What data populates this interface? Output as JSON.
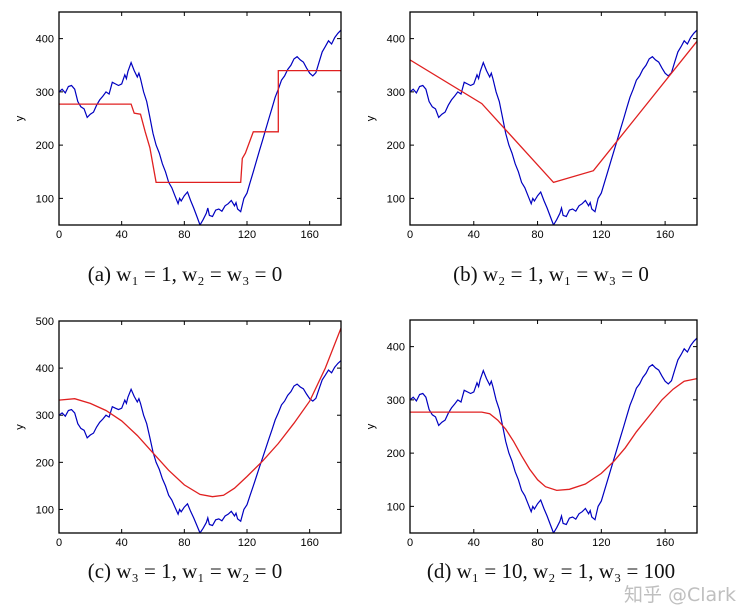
{
  "colors": {
    "observed": "#0000c0",
    "fit": "#e02020"
  },
  "watermark": "知乎 @Clark",
  "chart_data": [
    {
      "type": "line",
      "caption": "(a) w₁ = 1, w₂ = w₃ = 0",
      "ylabel": "y",
      "xlim": [
        0,
        180
      ],
      "ylim": [
        50,
        450
      ],
      "xticks": [
        0,
        40,
        80,
        120,
        160
      ],
      "yticks": [
        100,
        200,
        300,
        400
      ],
      "fit": [
        [
          0,
          277
        ],
        [
          46,
          277
        ],
        [
          48,
          260
        ],
        [
          52,
          258
        ],
        [
          55,
          225
        ],
        [
          58,
          195
        ],
        [
          62,
          130
        ],
        [
          116,
          130
        ],
        [
          117,
          175
        ],
        [
          119,
          185
        ],
        [
          124,
          225
        ],
        [
          140,
          225
        ],
        [
          140,
          340
        ],
        [
          180,
          340
        ]
      ]
    },
    {
      "type": "line",
      "caption": "(b) w₂ = 1, w₁ = w₃ = 0",
      "ylabel": "y",
      "xlim": [
        0,
        180
      ],
      "ylim": [
        50,
        450
      ],
      "xticks": [
        0,
        40,
        80,
        120,
        160
      ],
      "yticks": [
        100,
        200,
        300,
        400
      ],
      "fit": [
        [
          0,
          360
        ],
        [
          45,
          278
        ],
        [
          90,
          130
        ],
        [
          115,
          152
        ],
        [
          180,
          395
        ]
      ]
    },
    {
      "type": "line",
      "caption": "(c) w₃ = 1, w₁ = w₂ = 0",
      "ylabel": "y",
      "xlim": [
        0,
        180
      ],
      "ylim": [
        50,
        500
      ],
      "xticks": [
        0,
        40,
        80,
        120,
        160
      ],
      "yticks": [
        100,
        200,
        300,
        400,
        500
      ],
      "fit": [
        [
          0,
          332
        ],
        [
          10,
          335
        ],
        [
          20,
          325
        ],
        [
          30,
          310
        ],
        [
          40,
          288
        ],
        [
          50,
          257
        ],
        [
          60,
          220
        ],
        [
          70,
          183
        ],
        [
          80,
          152
        ],
        [
          90,
          132
        ],
        [
          98,
          127
        ],
        [
          105,
          130
        ],
        [
          112,
          145
        ],
        [
          120,
          170
        ],
        [
          130,
          203
        ],
        [
          140,
          240
        ],
        [
          150,
          283
        ],
        [
          160,
          330
        ],
        [
          170,
          400
        ],
        [
          180,
          485
        ]
      ]
    },
    {
      "type": "line",
      "caption": "(d) w₁ = 10, w₂ = 1, w₃ = 100",
      "ylabel": "y",
      "xlim": [
        0,
        180
      ],
      "ylim": [
        50,
        450
      ],
      "xticks": [
        0,
        40,
        80,
        120,
        160
      ],
      "yticks": [
        100,
        200,
        300,
        400
      ],
      "fit": [
        [
          0,
          277
        ],
        [
          45,
          277
        ],
        [
          50,
          274
        ],
        [
          55,
          262
        ],
        [
          60,
          245
        ],
        [
          65,
          222
        ],
        [
          70,
          195
        ],
        [
          75,
          170
        ],
        [
          80,
          150
        ],
        [
          85,
          137
        ],
        [
          92,
          130
        ],
        [
          100,
          132
        ],
        [
          110,
          142
        ],
        [
          120,
          162
        ],
        [
          128,
          185
        ],
        [
          135,
          210
        ],
        [
          142,
          240
        ],
        [
          150,
          270
        ],
        [
          158,
          300
        ],
        [
          165,
          320
        ],
        [
          172,
          335
        ],
        [
          180,
          340
        ]
      ]
    }
  ],
  "observed": [
    [
      0,
      300
    ],
    [
      2,
      305
    ],
    [
      4,
      298
    ],
    [
      6,
      310
    ],
    [
      8,
      312
    ],
    [
      10,
      305
    ],
    [
      12,
      282
    ],
    [
      14,
      272
    ],
    [
      16,
      268
    ],
    [
      18,
      252
    ],
    [
      20,
      258
    ],
    [
      22,
      262
    ],
    [
      24,
      275
    ],
    [
      26,
      285
    ],
    [
      28,
      292
    ],
    [
      30,
      300
    ],
    [
      32,
      296
    ],
    [
      34,
      318
    ],
    [
      36,
      315
    ],
    [
      38,
      312
    ],
    [
      40,
      315
    ],
    [
      42,
      332
    ],
    [
      43,
      325
    ],
    [
      44,
      338
    ],
    [
      46,
      355
    ],
    [
      48,
      340
    ],
    [
      50,
      328
    ],
    [
      51,
      335
    ],
    [
      52,
      325
    ],
    [
      54,
      300
    ],
    [
      56,
      282
    ],
    [
      58,
      252
    ],
    [
      60,
      222
    ],
    [
      62,
      200
    ],
    [
      64,
      185
    ],
    [
      66,
      165
    ],
    [
      68,
      150
    ],
    [
      70,
      130
    ],
    [
      72,
      120
    ],
    [
      74,
      105
    ],
    [
      76,
      90
    ],
    [
      77,
      100
    ],
    [
      78,
      95
    ],
    [
      80,
      105
    ],
    [
      82,
      112
    ],
    [
      84,
      96
    ],
    [
      86,
      82
    ],
    [
      88,
      66
    ],
    [
      90,
      50
    ],
    [
      92,
      60
    ],
    [
      94,
      72
    ],
    [
      95,
      82
    ],
    [
      96,
      68
    ],
    [
      98,
      66
    ],
    [
      100,
      78
    ],
    [
      102,
      80
    ],
    [
      104,
      76
    ],
    [
      106,
      86
    ],
    [
      108,
      90
    ],
    [
      110,
      96
    ],
    [
      112,
      86
    ],
    [
      113,
      92
    ],
    [
      114,
      80
    ],
    [
      116,
      75
    ],
    [
      118,
      100
    ],
    [
      120,
      110
    ],
    [
      122,
      130
    ],
    [
      124,
      150
    ],
    [
      126,
      170
    ],
    [
      128,
      190
    ],
    [
      130,
      210
    ],
    [
      132,
      230
    ],
    [
      134,
      250
    ],
    [
      136,
      270
    ],
    [
      138,
      290
    ],
    [
      140,
      305
    ],
    [
      142,
      322
    ],
    [
      144,
      330
    ],
    [
      146,
      342
    ],
    [
      148,
      350
    ],
    [
      150,
      362
    ],
    [
      152,
      366
    ],
    [
      154,
      360
    ],
    [
      156,
      356
    ],
    [
      158,
      345
    ],
    [
      160,
      335
    ],
    [
      162,
      330
    ],
    [
      164,
      336
    ],
    [
      166,
      356
    ],
    [
      168,
      375
    ],
    [
      170,
      385
    ],
    [
      172,
      396
    ],
    [
      174,
      390
    ],
    [
      176,
      402
    ],
    [
      178,
      410
    ],
    [
      180,
      416
    ]
  ]
}
